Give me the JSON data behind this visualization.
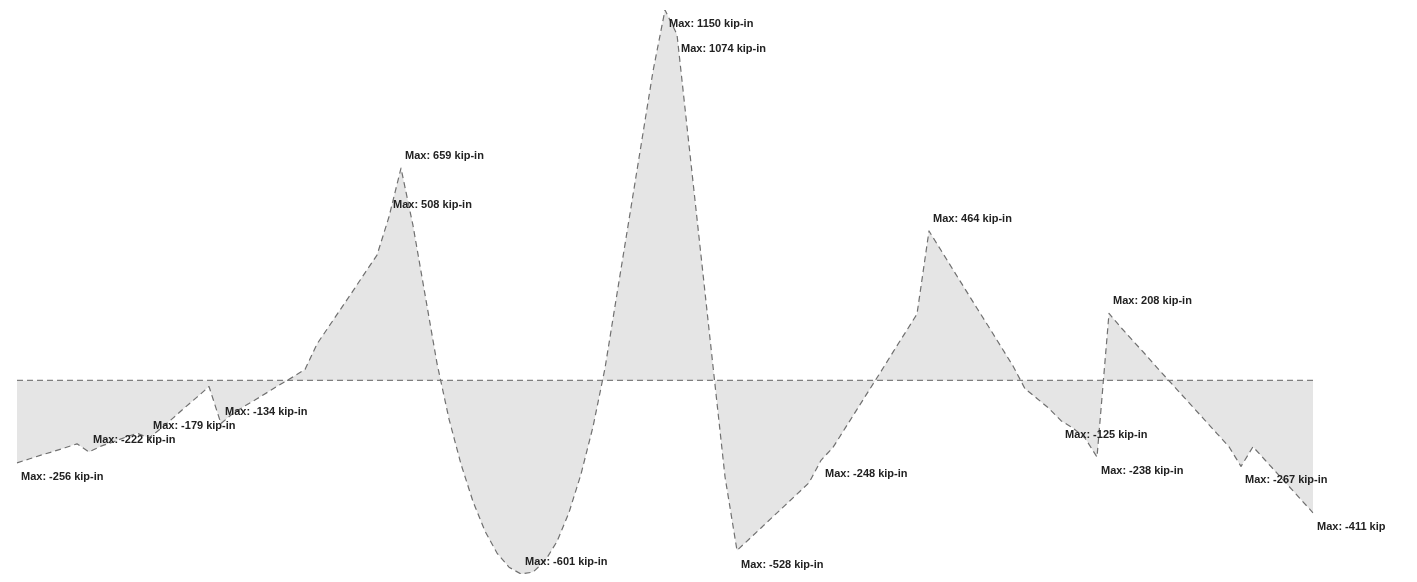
{
  "chart_data": {
    "type": "area",
    "line_style": "dashed",
    "marker": "none",
    "color": "#707070",
    "categories": [
      null,
      null,
      null,
      null,
      null,
      null,
      null,
      null,
      null,
      null,
      null,
      null,
      null,
      null,
      null,
      null,
      null,
      null,
      null,
      null,
      null,
      null,
      null,
      null,
      null,
      null,
      null,
      null,
      null,
      null,
      null,
      null,
      null,
      null,
      null,
      null,
      null,
      null,
      null,
      null,
      null,
      null,
      null,
      null,
      null,
      null,
      null,
      null,
      null,
      null,
      null,
      null,
      null,
      null,
      null,
      null,
      null,
      null,
      null,
      null,
      null,
      null,
      null,
      null,
      null,
      null,
      null,
      null,
      null,
      null,
      null,
      null,
      null,
      null,
      null,
      null,
      null,
      null,
      null,
      null,
      null,
      null,
      null,
      null,
      null,
      null,
      null,
      null,
      null,
      null,
      null,
      null,
      null,
      null,
      null,
      null,
      null,
      null,
      null,
      null,
      null,
      null,
      null,
      null,
      null,
      null,
      null,
      null,
      null
    ],
    "values": [
      -256,
      -244,
      -232,
      -221,
      -209,
      -197,
      -222,
      -204,
      -191,
      -177,
      -164,
      -179,
      -149,
      -117,
      -84,
      -52,
      -19,
      -134,
      -102,
      -79,
      -57,
      -34,
      -11,
      11,
      34,
      113,
      168,
      223,
      278,
      334,
      389,
      508,
      659,
      481,
      267,
      53,
      -120,
      -260,
      -376,
      -468,
      -536,
      -580,
      -601,
      -595,
      -561,
      -500,
      -410,
      -291,
      -144,
      38,
      269,
      499,
      729,
      960,
      1150,
      1074,
      731,
      388,
      44,
      -299,
      -528,
      -493,
      -458,
      -423,
      -388,
      -353,
      -318,
      -248,
      -208,
      -149,
      -90,
      -31,
      28,
      88,
      147,
      206,
      464,
      404,
      344,
      284,
      224,
      165,
      105,
      45,
      -26,
      -56,
      -87,
      -125,
      -148,
      -179,
      -238,
      208,
      164,
      123,
      82,
      40,
      -1,
      -42,
      -83,
      -124,
      -165,
      -206,
      -267,
      -206,
      -247,
      -288,
      -329,
      -370,
      -411
    ],
    "value_labels": [
      "Max: -256 kip-in",
      null,
      null,
      null,
      null,
      null,
      "Max: -222 kip-in",
      null,
      null,
      null,
      null,
      "Max: -179 kip-in",
      null,
      null,
      null,
      null,
      null,
      "Max: -134 kip-in",
      null,
      null,
      null,
      null,
      null,
      null,
      null,
      null,
      null,
      null,
      null,
      null,
      null,
      "Max: 508 kip-in",
      "Max: 659 kip-in",
      null,
      null,
      null,
      null,
      null,
      null,
      null,
      null,
      null,
      "Max: -601 kip-in",
      null,
      null,
      null,
      null,
      null,
      null,
      null,
      null,
      null,
      null,
      null,
      "Max: 1150 kip-in",
      "Max: 1074 kip-in",
      null,
      null,
      null,
      null,
      "Max: -528 kip-in",
      null,
      null,
      null,
      null,
      null,
      null,
      "Max: -248 kip-in",
      null,
      null,
      null,
      null,
      null,
      null,
      null,
      null,
      "Max: 464 kip-in",
      null,
      null,
      null,
      null,
      null,
      null,
      null,
      null,
      null,
      null,
      "Max: -125 kip-in",
      null,
      null,
      "Max: -238 kip-in",
      "Max: 208 kip-in",
      null,
      null,
      null,
      null,
      null,
      null,
      null,
      null,
      null,
      null,
      "Max: -267 kip-in",
      null,
      null,
      null,
      null,
      null,
      "Max: -411 kip"
    ],
    "ref_lines": [
      {
        "axis": "y",
        "value": 0,
        "color": "#808080",
        "line_style": "dashed"
      }
    ]
  }
}
